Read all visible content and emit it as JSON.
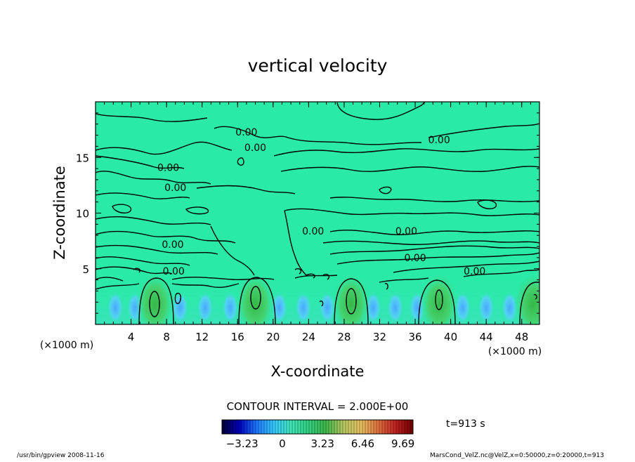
{
  "chart_data": {
    "type": "heatmap",
    "title": "vertical velocity",
    "xlabel": "X-coordinate",
    "ylabel": "Z-coordinate",
    "x_unit": "(×1000 m)",
    "y_unit": "(×1000 m)",
    "xlim": [
      0,
      50
    ],
    "ylim": [
      0,
      20
    ],
    "xticks": [
      4,
      8,
      12,
      16,
      20,
      24,
      28,
      32,
      36,
      40,
      44,
      48
    ],
    "yticks": [
      5,
      10,
      15
    ],
    "contour_labels": [
      {
        "text": "0.00",
        "x": 17.0,
        "z": 17.3
      },
      {
        "text": "0.00",
        "x": 18.0,
        "z": 15.9
      },
      {
        "text": "0.00",
        "x": 38.7,
        "z": 16.6
      },
      {
        "text": "0.00",
        "x": 8.2,
        "z": 14.1
      },
      {
        "text": "0.00",
        "x": 9.0,
        "z": 12.3
      },
      {
        "text": "0.00",
        "x": 24.5,
        "z": 8.4
      },
      {
        "text": "0.00",
        "x": 35.0,
        "z": 8.4
      },
      {
        "text": "0.00",
        "x": 8.7,
        "z": 7.2
      },
      {
        "text": "0.00",
        "x": 36.0,
        "z": 6.0
      },
      {
        "text": "0.00",
        "x": 8.8,
        "z": 4.8
      },
      {
        "text": "0.00",
        "x": 42.7,
        "z": 4.8
      }
    ],
    "updraft_cores_x": [
      6.7,
      18.0,
      28.8,
      38.7,
      49.3
    ],
    "contour_interval": "CONTOUR INTERVAL = 2.000E+00",
    "colorbar": {
      "ticks": [
        "−3.23",
        "0",
        "3.23",
        "6.46",
        "9.69"
      ],
      "min": -4.85,
      "max": 10.5,
      "colors": [
        "#000033",
        "#0000c0",
        "#1e78ff",
        "#35c8ff",
        "#40e8b8",
        "#30d080",
        "#40b848",
        "#b8c860",
        "#e8c060",
        "#e07040",
        "#c02020",
        "#700000"
      ]
    },
    "time_label": "t=913 s",
    "footer_left": "/usr/bin/gpview   2008-11-16",
    "footer_right": "MarsCond_VelZ.nc@VelZ,x=0:50000,z=0:20000,t=913",
    "colors": {
      "background_field": "#28ebaa",
      "updraft": "#3cc850",
      "downdraft": "#50b4ff"
    }
  }
}
